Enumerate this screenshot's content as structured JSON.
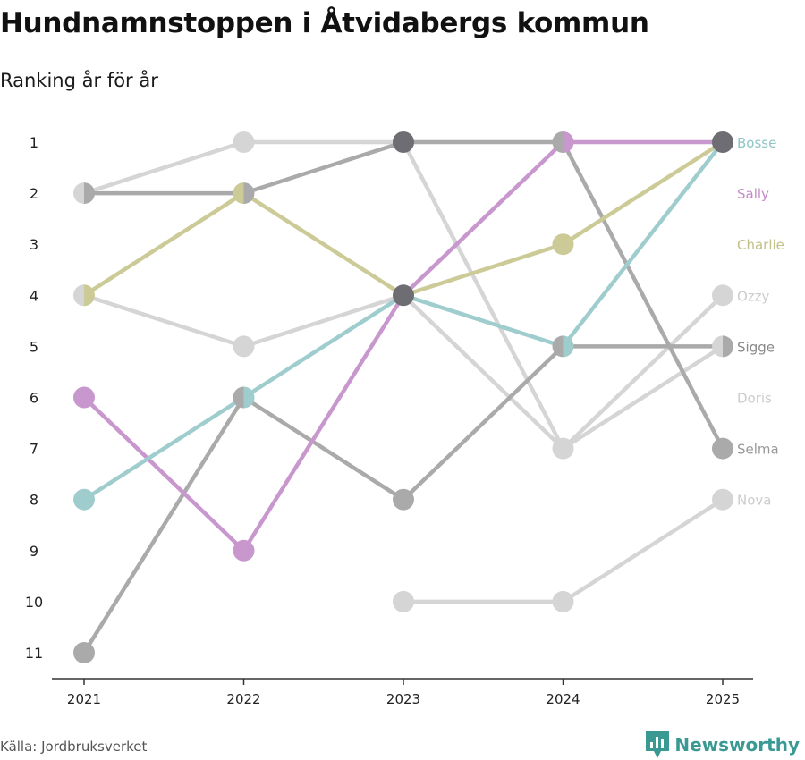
{
  "header": {
    "title": "Hundnamnstoppen i Åtvidabergs kommun",
    "subtitle": "Ranking år för år"
  },
  "footer": {
    "source": "Källa: Jordbruksverket",
    "brand": "Newsworthy",
    "brand_icon": "bar-chart-logo-icon"
  },
  "colors": {
    "axis": "#333333",
    "tick_text": "#222222"
  },
  "chart_data": {
    "type": "line",
    "subtype": "bump",
    "title": "Hundnamnstoppen i Åtvidabergs kommun",
    "subtitle": "Ranking år för år",
    "x": [
      "2021",
      "2022",
      "2023",
      "2024",
      "2025"
    ],
    "y_ticks": [
      1,
      2,
      3,
      4,
      5,
      6,
      7,
      8,
      9,
      10,
      11
    ],
    "ylim": [
      1,
      11
    ],
    "y_inverted": true,
    "series": [
      {
        "name": "Nova",
        "color": "#d5d5d5",
        "label_color": "#cccccc",
        "values": [
          null,
          null,
          10,
          10,
          8
        ]
      },
      {
        "name": "Doris",
        "color": "#d5d5d5",
        "label_color": "#cccccc",
        "values": [
          4,
          5,
          4,
          7,
          5
        ]
      },
      {
        "name": "Ozzy",
        "color": "#d5d5d5",
        "label_color": "#cccccc",
        "values": [
          2,
          1,
          1,
          7,
          4
        ]
      },
      {
        "name": "Selma",
        "color": "#aaaaaa",
        "label_color": "#999999",
        "values": [
          null,
          null,
          1,
          1,
          7
        ]
      },
      {
        "name": "Sigge",
        "color": "#aaaaaa",
        "label_color": "#888888",
        "values": [
          11,
          6,
          8,
          5,
          5
        ]
      },
      {
        "name": "Charlie",
        "color": "#cccb98",
        "label_color": "#c0bf85",
        "values": [
          4,
          2,
          4,
          3,
          1
        ]
      },
      {
        "name": "Sally",
        "color": "#c897cd",
        "label_color": "#c38bc9",
        "values": [
          6,
          9,
          4,
          1,
          1
        ]
      },
      {
        "name": "Bosse",
        "color": "#9fcdce",
        "label_color": "#8fc5c6",
        "values": [
          8,
          6,
          4,
          5,
          1
        ]
      },
      {
        "name": "",
        "color": "#aaaaaa",
        "label_color": "#aaaaaa",
        "values": [
          2,
          2,
          1,
          null,
          null
        ]
      }
    ],
    "end_labels": [
      {
        "name": "Bosse",
        "rank": 1,
        "color": "#8fc5c6"
      },
      {
        "name": "Sally",
        "rank": 2,
        "color": "#c38bc9"
      },
      {
        "name": "Charlie",
        "rank": 3,
        "color": "#c0bf85"
      },
      {
        "name": "Ozzy",
        "rank": 4,
        "color": "#cccccc"
      },
      {
        "name": "Sigge",
        "rank": 5,
        "color": "#888888"
      },
      {
        "name": "Doris",
        "rank": 6,
        "color": "#cccccc"
      },
      {
        "name": "Selma",
        "rank": 7,
        "color": "#999999"
      },
      {
        "name": "Nova",
        "rank": 8,
        "color": "#cccccc"
      }
    ]
  }
}
